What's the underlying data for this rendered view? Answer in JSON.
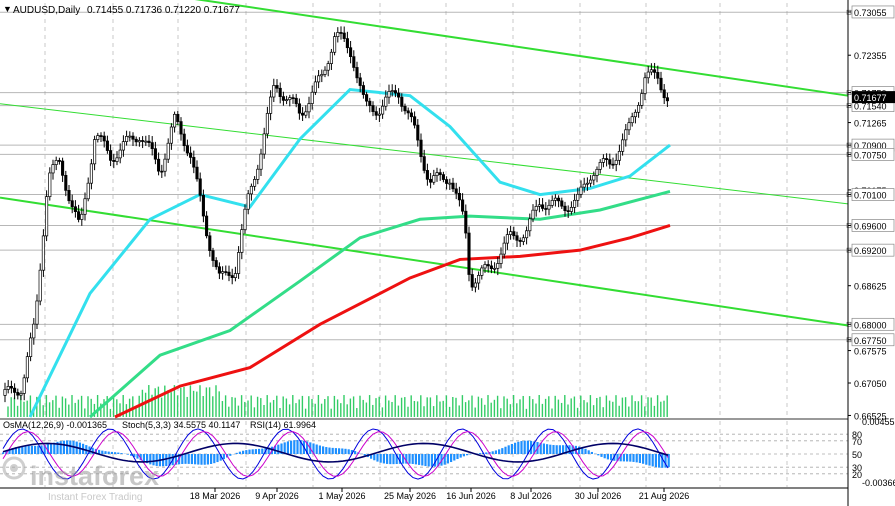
{
  "header": {
    "symbol": "AUDUSD,Daily",
    "ohlc": "0.71455 0.71736 0.71220 0.71677"
  },
  "indicator_header": {
    "osma": "OsMA(12,26,9) -0.001365",
    "stoch": "Stoch(5,3,3) 34.5575 40.1147",
    "rsi": "RSI(14) 61.9964"
  },
  "watermark": {
    "brand": "instaforex",
    "tagline": "Instant Forex Trading"
  },
  "colors": {
    "background": "#ffffff",
    "grid": "#c8c8c8",
    "candles": "#000000",
    "channel": "#33dd33",
    "ma_cyan": "#33e0ee",
    "ma_green": "#33dd88",
    "ma_red": "#ee1111",
    "volume": "#33cc66",
    "osma_hist": "#1e90ff",
    "stoch_main": "#0000dd",
    "stoch_signal": "#cc00cc",
    "rsi": "#000066"
  },
  "chart_data": {
    "type": "candlestick",
    "title": "AUDUSD,Daily",
    "x_ticks": [
      "18 Mar 2026",
      "9 Apr 2026",
      "1 May 2026",
      "25 May 2026",
      "16 Jun 2026",
      "8 Jul 2026",
      "30 Jul 2026",
      "21 Aug 2026"
    ],
    "y_ticks": [
      "0.73055",
      "0.72355",
      "0.71750",
      "0.71540",
      "0.71265",
      "0.70900",
      "0.70750",
      "0.70175",
      "0.70100",
      "0.69600",
      "0.69200",
      "0.68625",
      "0.68000",
      "0.67750",
      "0.67575",
      "0.67050",
      "0.66525"
    ],
    "ylim": [
      0.665,
      0.732
    ],
    "last_price": 0.71677,
    "key_levels": [
      0.7305,
      0.7175,
      0.7154,
      0.709,
      0.7075,
      0.701,
      0.696,
      0.692,
      0.68,
      0.6775
    ],
    "volume_label": "volume",
    "indicators": {
      "osma": -0.001365,
      "stoch_main": 34.5575,
      "stoch_signal": 40.1147,
      "rsi": 61.9964,
      "levels": [
        "80",
        "70",
        "50",
        "30",
        "20"
      ],
      "right_scale": [
        "0.0045552",
        "-0.0036621"
      ]
    }
  }
}
